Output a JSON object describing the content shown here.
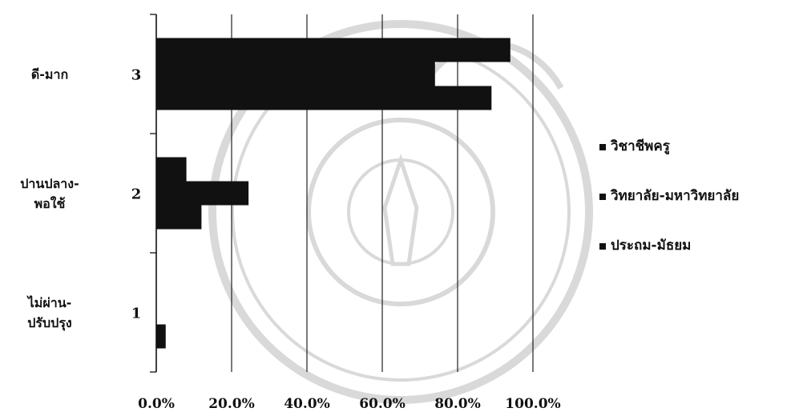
{
  "chart_data": {
    "type": "bar",
    "orientation": "horizontal",
    "categories": [
      {
        "code": "1",
        "label_lines": [
          "ไม่ผ่าน-",
          "ปรับปรุง"
        ]
      },
      {
        "code": "2",
        "label_lines": [
          "ปานปลาง-",
          "พอใช้"
        ]
      },
      {
        "code": "3",
        "label_lines": [
          "ดี-มาก"
        ]
      }
    ],
    "series": [
      {
        "name": "ประถม-มัธยม",
        "values": [
          2.5,
          12,
          89
        ]
      },
      {
        "name": "วิทยาลัย-มหาวิทยาลัย",
        "values": [
          0,
          24.5,
          74
        ]
      },
      {
        "name": "วิชาชีพครู",
        "values": [
          0,
          8,
          94
        ]
      }
    ],
    "x_tick_labels": [
      "0.0%",
      "20.0%",
      "40.0%",
      "60.0%",
      "80.0%",
      "100.0%"
    ],
    "xlim": [
      0,
      100
    ],
    "grid": true,
    "legend_position": "right",
    "title": "",
    "xlabel": "",
    "ylabel": ""
  },
  "watermark": {
    "kind": "seal",
    "description_hidden": true
  },
  "colors": {
    "bar": "#111111",
    "grid": "#222222",
    "text": "#111111"
  }
}
